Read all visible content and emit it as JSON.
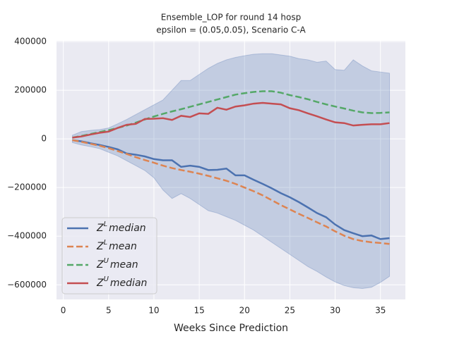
{
  "chart_data": {
    "type": "line",
    "title": "Ensemble_LOP for round 14 hosp",
    "subtitle": "epsilon = (0.05,0.05), Scenario C-A",
    "x_label": "Weeks Since Prediction",
    "x": [
      1,
      2,
      3,
      4,
      5,
      6,
      7,
      8,
      9,
      10,
      11,
      12,
      13,
      14,
      15,
      16,
      17,
      18,
      19,
      20,
      21,
      22,
      23,
      24,
      25,
      26,
      27,
      28,
      29,
      30,
      31,
      32,
      33,
      34,
      35,
      36
    ],
    "xlim": [
      -0.75,
      37.75
    ],
    "xticks": [
      0,
      5,
      10,
      15,
      20,
      25,
      30,
      35
    ],
    "ylim": [
      -660000,
      403000
    ],
    "yticks": [
      {
        "value": -600000,
        "label": "−600000"
      },
      {
        "value": -400000,
        "label": "−400000"
      },
      {
        "value": -200000,
        "label": "−200000"
      },
      0,
      200000,
      400000
    ],
    "grid": true,
    "legend_position": "lower left",
    "band": {
      "color": "#4c72b0",
      "upper": [
        15000,
        30000,
        35000,
        38000,
        45000,
        62000,
        80000,
        100000,
        120000,
        140000,
        160000,
        200000,
        240000,
        240000,
        265000,
        290000,
        310000,
        325000,
        335000,
        342000,
        348000,
        350000,
        350000,
        345000,
        340000,
        330000,
        325000,
        315000,
        320000,
        285000,
        282000,
        325000,
        300000,
        280000,
        275000,
        270000
      ],
      "lower": [
        -15000,
        -25000,
        -32000,
        -40000,
        -55000,
        -70000,
        -90000,
        -110000,
        -130000,
        -160000,
        -210000,
        -245000,
        -225000,
        -245000,
        -270000,
        -295000,
        -305000,
        -320000,
        -335000,
        -355000,
        -375000,
        -400000,
        -425000,
        -450000,
        -475000,
        -500000,
        -525000,
        -545000,
        -568000,
        -588000,
        -603000,
        -612000,
        -615000,
        -610000,
        -590000,
        -565000
      ]
    },
    "series": [
      {
        "symbol": "Z",
        "superscript": "L",
        "name": "median",
        "color": "#4c72b0",
        "dashed": false,
        "values": [
          -5000,
          -10000,
          -18000,
          -25000,
          -33000,
          -43000,
          -60000,
          -65000,
          -72000,
          -83000,
          -88000,
          -88000,
          -115000,
          -110000,
          -115000,
          -128000,
          -127000,
          -122000,
          -150000,
          -150000,
          -168000,
          -185000,
          -203000,
          -223000,
          -240000,
          -260000,
          -282000,
          -305000,
          -322000,
          -352000,
          -375000,
          -388000,
          -400000,
          -397000,
          -412000,
          -408000
        ]
      },
      {
        "symbol": "Z",
        "superscript": "L",
        "name": "mean",
        "color": "#dd8452",
        "dashed": true,
        "values": [
          -5000,
          -12000,
          -20000,
          -28000,
          -38000,
          -50000,
          -62000,
          -75000,
          -87000,
          -98000,
          -110000,
          -120000,
          -128000,
          -135000,
          -143000,
          -152000,
          -162000,
          -172000,
          -185000,
          -200000,
          -215000,
          -232000,
          -252000,
          -272000,
          -290000,
          -308000,
          -325000,
          -343000,
          -360000,
          -380000,
          -398000,
          -412000,
          -420000,
          -425000,
          -428000,
          -432000
        ]
      },
      {
        "symbol": "Z",
        "superscript": "U",
        "name": "mean",
        "color": "#55a868",
        "dashed": true,
        "values": [
          5000,
          12000,
          20000,
          28000,
          36000,
          45000,
          55000,
          67000,
          80000,
          92000,
          103000,
          113000,
          122000,
          132000,
          142000,
          152000,
          162000,
          172000,
          182000,
          188000,
          193000,
          196000,
          196000,
          190000,
          180000,
          172000,
          163000,
          152000,
          142000,
          133000,
          125000,
          116000,
          109000,
          106000,
          107000,
          109000
        ]
      },
      {
        "symbol": "Z",
        "superscript": "U",
        "name": "median",
        "color": "#c44e52",
        "dashed": false,
        "values": [
          5000,
          10000,
          18000,
          25000,
          30000,
          45000,
          58000,
          62000,
          82000,
          83000,
          85000,
          78000,
          95000,
          90000,
          105000,
          103000,
          128000,
          120000,
          133000,
          138000,
          145000,
          148000,
          145000,
          142000,
          126000,
          118000,
          105000,
          93000,
          80000,
          68000,
          65000,
          55000,
          58000,
          60000,
          60000,
          65000
        ]
      }
    ]
  }
}
